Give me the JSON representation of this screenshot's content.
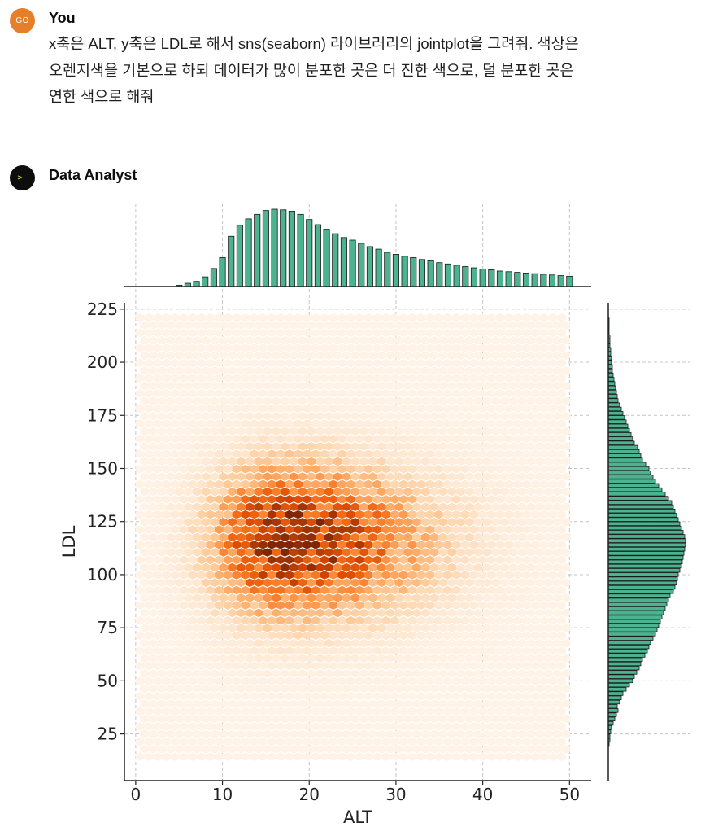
{
  "user_message": {
    "avatar_initials": "GO",
    "author": "You",
    "text_lines": [
      "x축은 ALT, y축은 LDL로 해서 sns(seaborn) 라이브러리의 jointplot을 그려줘. 색상은",
      "오렌지색을 기본으로 하되 데이터가 많이 분포한 곳은 더 진한 색으로, 덜 분포한 곳은",
      "연한 색으로 해줘"
    ]
  },
  "assistant_message": {
    "avatar_glyph": ">_",
    "author": "Data Analyst"
  },
  "colors": {
    "user_avatar": "#e57f2a",
    "bar_fill": "#4cb391",
    "bar_edge": "#1a1a1a",
    "hex_light": "#fff5eb",
    "hex_dark": "#7f2704"
  },
  "chart_data": {
    "type": "jointplot-hex",
    "xlabel": "ALT",
    "ylabel": "LDL",
    "xlim": [
      -1.3,
      52.5
    ],
    "ylim": [
      3,
      228
    ],
    "x_ticks": [
      0,
      10,
      20,
      30,
      40,
      50
    ],
    "y_ticks": [
      25,
      50,
      75,
      100,
      125,
      150,
      175,
      200,
      225
    ],
    "grid": true,
    "joint": {
      "kind": "hex",
      "colormap": "Oranges",
      "x_range": [
        0.5,
        50
      ],
      "y_range": [
        13,
        221
      ],
      "density_peak": {
        "x": 17,
        "y": 116
      }
    },
    "marginal_x": {
      "kind": "hist",
      "bin_centers": [
        5,
        6,
        7,
        8,
        9,
        10,
        11,
        12,
        13,
        14,
        15,
        16,
        17,
        18,
        19,
        20,
        21,
        22,
        23,
        24,
        25,
        26,
        27,
        28,
        29,
        30,
        31,
        32,
        33,
        34,
        35,
        36,
        37,
        38,
        39,
        40,
        41,
        42,
        43,
        44,
        45,
        46,
        47,
        48,
        49,
        50
      ],
      "counts": [
        2,
        5,
        8,
        15,
        28,
        45,
        78,
        95,
        105,
        112,
        118,
        120,
        119,
        117,
        112,
        104,
        96,
        89,
        82,
        76,
        72,
        67,
        62,
        58,
        53,
        50,
        47,
        45,
        42,
        40,
        37,
        35,
        33,
        31,
        29,
        27,
        26,
        24,
        23,
        22,
        21,
        20,
        19,
        18,
        17,
        16
      ]
    },
    "marginal_y": {
      "kind": "hist",
      "bin_centers": [
        20,
        22,
        24,
        26,
        28,
        30,
        32,
        34,
        36,
        38,
        40,
        42,
        44,
        46,
        48,
        50,
        52,
        54,
        56,
        58,
        60,
        62,
        64,
        66,
        68,
        70,
        72,
        74,
        76,
        78,
        80,
        82,
        84,
        86,
        88,
        90,
        92,
        94,
        96,
        98,
        100,
        102,
        104,
        106,
        108,
        110,
        112,
        114,
        116,
        118,
        120,
        122,
        124,
        126,
        128,
        130,
        132,
        134,
        136,
        138,
        140,
        142,
        144,
        146,
        148,
        150,
        152,
        154,
        156,
        158,
        160,
        162,
        164,
        166,
        168,
        170,
        172,
        174,
        176,
        178,
        180,
        182,
        184,
        186,
        188,
        190,
        192,
        194,
        196,
        198,
        200,
        202,
        204,
        206,
        208,
        210,
        212,
        214,
        216,
        218,
        220
      ],
      "counts": [
        1,
        2,
        2,
        3,
        4,
        6,
        8,
        10,
        12,
        11,
        14,
        16,
        18,
        22,
        26,
        30,
        32,
        35,
        38,
        40,
        42,
        45,
        48,
        50,
        52,
        55,
        58,
        60,
        62,
        64,
        66,
        68,
        70,
        72,
        74,
        76,
        80,
        82,
        84,
        85,
        86,
        88,
        90,
        91,
        92,
        93,
        94,
        95,
        95,
        94,
        92,
        90,
        88,
        86,
        84,
        82,
        80,
        78,
        74,
        70,
        66,
        62,
        58,
        55,
        52,
        50,
        46,
        42,
        40,
        38,
        36,
        32,
        30,
        28,
        26,
        24,
        22,
        20,
        18,
        16,
        14,
        12,
        11,
        10,
        9,
        8,
        7,
        6,
        5,
        5,
        4,
        4,
        3,
        3,
        2,
        2,
        2,
        1,
        1,
        1,
        1
      ]
    }
  }
}
